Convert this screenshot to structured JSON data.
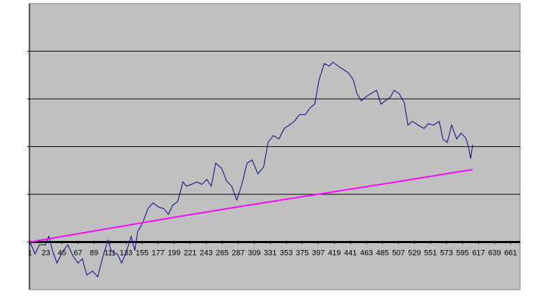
{
  "chart_data": {
    "type": "line",
    "xlim": [
      1,
      674
    ],
    "xticks": [
      1,
      23,
      45,
      67,
      89,
      111,
      133,
      155,
      177,
      199,
      221,
      243,
      265,
      287,
      309,
      331,
      353,
      375,
      397,
      419,
      441,
      463,
      485,
      507,
      529,
      551,
      573,
      595,
      617,
      639,
      661
    ],
    "ylim": [
      -1,
      5
    ],
    "yticks": [
      0,
      1,
      2,
      3,
      4
    ],
    "grid": true,
    "background": "#c0c0c0",
    "series": [
      {
        "color": "#000080",
        "x": [
          1,
          8,
          14,
          22,
          27,
          32,
          38,
          46,
          53,
          60,
          67,
          73,
          79,
          87,
          94,
          101,
          108,
          113,
          121,
          127,
          134,
          140,
          145,
          149,
          156,
          163,
          170,
          178,
          185,
          191,
          197,
          204,
          211,
          216,
          223,
          230,
          237,
          244,
          250,
          256,
          264,
          271,
          278,
          285,
          292,
          299,
          306,
          314,
          322,
          328,
          335,
          343,
          350,
          357,
          364,
          371,
          379,
          386,
          392,
          398,
          405,
          412,
          417,
          424,
          431,
          438,
          445,
          450,
          456,
          462,
          469,
          477,
          483,
          489,
          496,
          501,
          508,
          515,
          520,
          526,
          534,
          542,
          548,
          555,
          563,
          568,
          574,
          580,
          587,
          593,
          599,
          603,
          606,
          609
        ],
        "values": [
          0,
          -0.25,
          -0.06,
          -0.06,
          0.12,
          -0.18,
          -0.44,
          -0.2,
          -0.06,
          -0.29,
          -0.44,
          -0.35,
          -0.69,
          -0.61,
          -0.73,
          -0.32,
          0.04,
          -0.2,
          -0.25,
          -0.44,
          -0.18,
          0.12,
          -0.18,
          0.22,
          0.41,
          0.7,
          0.82,
          0.73,
          0.7,
          0.58,
          0.77,
          0.85,
          1.26,
          1.17,
          1.21,
          1.26,
          1.21,
          1.31,
          1.17,
          1.65,
          1.55,
          1.28,
          1.17,
          0.88,
          1.21,
          1.65,
          1.72,
          1.43,
          1.58,
          2.09,
          2.23,
          2.16,
          2.38,
          2.45,
          2.53,
          2.67,
          2.67,
          2.82,
          2.89,
          3.4,
          3.74,
          3.69,
          3.77,
          3.69,
          3.62,
          3.55,
          3.4,
          3.11,
          2.96,
          3.04,
          3.11,
          3.18,
          2.89,
          2.96,
          3.04,
          3.18,
          3.11,
          2.92,
          2.45,
          2.53,
          2.45,
          2.38,
          2.48,
          2.45,
          2.53,
          2.16,
          2.09,
          2.45,
          2.16,
          2.28,
          2.19,
          2.01,
          1.75,
          2.04
        ]
      },
      {
        "color": "#ff00ff",
        "x": [
          1,
          100,
          200,
          300,
          400,
          500,
          609
        ],
        "values": [
          0,
          0.26,
          0.52,
          0.77,
          1.01,
          1.25,
          1.52
        ]
      }
    ]
  }
}
